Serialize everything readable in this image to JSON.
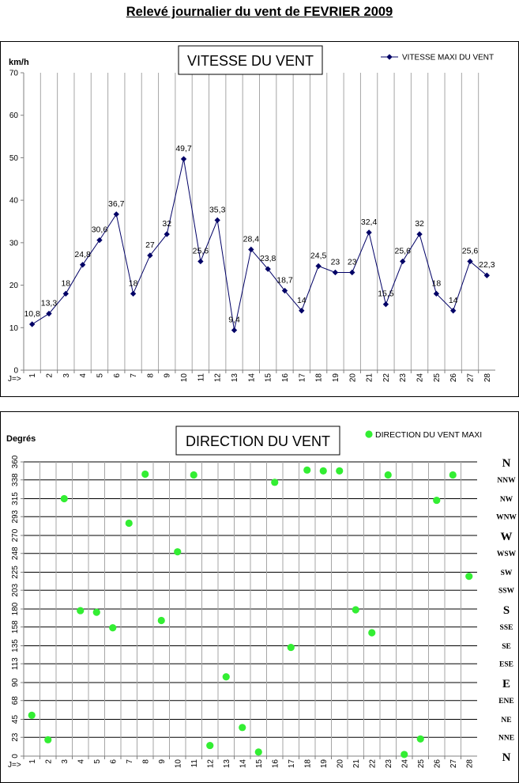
{
  "page_title": "Relevé journalier du vent de FEVRIER 2009",
  "chart_data": [
    {
      "type": "line",
      "title": "VITESSE DU VENT",
      "ylabel": "km/h",
      "xlabel": "J=>",
      "ylim": [
        0,
        70
      ],
      "yticks": [
        0,
        10,
        20,
        30,
        40,
        50,
        60,
        70
      ],
      "x": [
        1,
        2,
        3,
        4,
        5,
        6,
        7,
        8,
        9,
        10,
        11,
        12,
        13,
        14,
        15,
        16,
        17,
        18,
        19,
        20,
        21,
        22,
        23,
        24,
        25,
        26,
        27,
        28
      ],
      "series": [
        {
          "name": "VITESSE MAXI DU VENT",
          "color": "#000066",
          "values": [
            10.8,
            13.3,
            18,
            24.8,
            30.6,
            36.7,
            18,
            27,
            32,
            49.7,
            25.6,
            35.3,
            9.4,
            28.4,
            23.8,
            18.7,
            14,
            24.5,
            23,
            23,
            32.4,
            15.5,
            25.6,
            32,
            18,
            14,
            25.6,
            22.3
          ],
          "labels": [
            "10,8",
            "13,3",
            "18",
            "24,8",
            "30,6",
            "36,7",
            "18",
            "27",
            "32",
            "49,7",
            "25,6",
            "35,3",
            "9,4",
            "28,4",
            "23,8",
            "18,7",
            "14",
            "24,5",
            "23",
            "23",
            "32,4",
            "15,5",
            "25,6",
            "32",
            "18",
            "14",
            "25,6",
            "22,3"
          ]
        }
      ],
      "grid": "vertical",
      "legend": "top-right"
    },
    {
      "type": "scatter",
      "title": "DIRECTION DU VENT",
      "ylabel": "Degrés",
      "xlabel": "J=>",
      "ylim": [
        0,
        360
      ],
      "yticks": [
        0,
        23,
        45,
        68,
        90,
        113,
        135,
        158,
        180,
        203,
        225,
        248,
        270,
        293,
        315,
        338,
        360
      ],
      "compass": [
        "N",
        "NNE",
        "NE",
        "ENE",
        "E",
        "ESE",
        "SE",
        "SSE",
        "S",
        "SSW",
        "SW",
        "WSW",
        "W",
        "WNW",
        "NW",
        "NNW",
        "N"
      ],
      "x": [
        1,
        2,
        3,
        4,
        5,
        6,
        7,
        8,
        9,
        10,
        11,
        12,
        13,
        14,
        15,
        16,
        17,
        18,
        19,
        20,
        21,
        22,
        23,
        24,
        25,
        26,
        27,
        28
      ],
      "series": [
        {
          "name": "DIRECTION DU VENT MAXI",
          "color": "#33ee33",
          "values": [
            50,
            20,
            315,
            178,
            176,
            157,
            285,
            345,
            166,
            250,
            344,
            13,
            97,
            35,
            5,
            335,
            133,
            350,
            349,
            349,
            179,
            151,
            344,
            2,
            21,
            313,
            344,
            220
          ]
        }
      ],
      "grid": "horizontal",
      "legend": "top-right"
    }
  ]
}
